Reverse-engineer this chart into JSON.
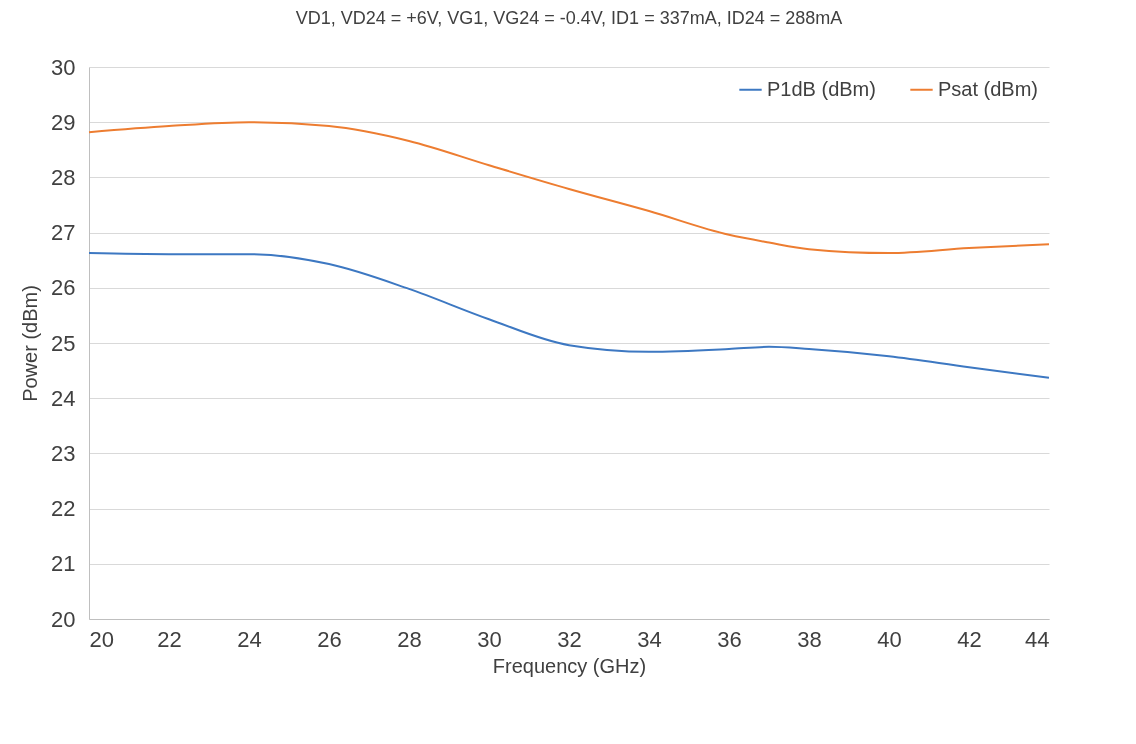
{
  "chart_data": {
    "type": "line",
    "title": "VD1, VD24 = +6V, VG1, VG24 = -0.4V, ID1 = 337mA, ID24 = 288mA",
    "xlabel": "Frequency (GHz)",
    "ylabel": "Power (dBm)",
    "x": [
      20,
      22,
      24,
      26,
      28,
      30,
      32,
      34,
      36,
      37,
      38,
      40,
      42,
      44
    ],
    "series": [
      {
        "name": "P1dB (dBm)",
        "color": "#3d78c2",
        "values": [
          26.63,
          26.61,
          26.61,
          26.43,
          25.98,
          25.43,
          24.96,
          24.84,
          24.89,
          24.93,
          24.89,
          24.76,
          24.56,
          24.37
        ]
      },
      {
        "name": "Psat (dBm)",
        "color": "#ed7d31",
        "values": [
          28.82,
          28.93,
          29.0,
          28.93,
          28.66,
          28.22,
          27.79,
          27.39,
          26.96,
          26.82,
          26.7,
          26.63,
          26.72,
          26.79
        ]
      }
    ],
    "xlim": [
      20,
      44
    ],
    "xticks": [
      20,
      22,
      24,
      26,
      28,
      30,
      32,
      34,
      36,
      38,
      40,
      42,
      44
    ],
    "ylim": [
      20,
      30
    ],
    "yticks": [
      20,
      21,
      22,
      23,
      24,
      25,
      26,
      27,
      28,
      29,
      30
    ],
    "grid": "y",
    "legend": "top right",
    "marker": "none",
    "line_style": "solid"
  }
}
